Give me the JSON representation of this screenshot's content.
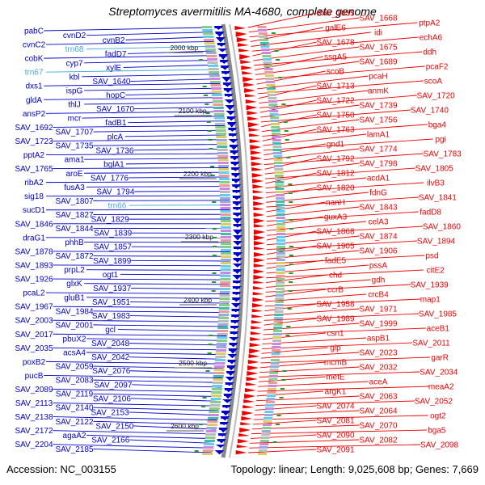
{
  "title": "Streptomyces avermitilis MA-4680, complete genome",
  "footer": {
    "accession": "Accession: NC_003155",
    "topology": "Topology: linear; Length: 9,025,608 bp; Genes: 7,669"
  },
  "colors": {
    "forward_strand": "#0000cc",
    "reverse_strand": "#ee0000",
    "trna": "#44aadd",
    "backbone": "#888888",
    "tick_marker": "#229922"
  },
  "scale_marks": [
    "2000 kbp",
    "2100 kbp",
    "2200 kbp",
    "2300 kbp",
    "2400 kbp",
    "2500 kbp",
    "2600 kbp"
  ],
  "left_labels": [
    "pabC",
    "cvnD2",
    "cvnB2",
    "cvnC2",
    "trn68",
    "fadD7",
    "cobK",
    "cyp7",
    "xylE",
    "trn67",
    "kbl",
    "SAV_1640",
    "dxs1",
    "ispG",
    "hopC",
    "gldA",
    "thlJ",
    "SAV_1670",
    "ansP2",
    "mcr",
    "fadB1",
    "SAV_1692",
    "SAV_1707",
    "plcA",
    "SAV_1723",
    "SAV_1735",
    "SAV_1736",
    "pptA2",
    "ama1",
    "bglA1",
    "SAV_1765",
    "aroE",
    "SAV_1776",
    "ribA2",
    "fusA3",
    "SAV_1794",
    "sig18",
    "SAV_1807",
    "trn66",
    "sucD1",
    "SAV_1827",
    "SAV_1829",
    "SAV_1846",
    "SAV_1844",
    "SAV_1839",
    "draG1",
    "phhB",
    "SAV_1857",
    "SAV_1878",
    "SAV_1872",
    "SAV_1899",
    "SAV_1893",
    "prpL2",
    "ogt1",
    "SAV_1926",
    "glxK",
    "SAV_1937",
    "pcaL2",
    "gluB1",
    "SAV_1951",
    "SAV_1967",
    "SAV_1984",
    "SAV_1983",
    "SAV_2003",
    "SAV_2001",
    "gcl",
    "SAV_2017",
    "pbuX2",
    "SAV_2048",
    "SAV_2035",
    "acsA4",
    "SAV_2042",
    "poxB2",
    "SAV_2059",
    "SAV_2076",
    "pucB",
    "SAV_2083",
    "SAV_2097",
    "SAV_2089",
    "SAV_2119",
    "SAV_2106",
    "SAV_2113",
    "SAV_2140",
    "SAV_2153",
    "SAV_2138",
    "SAV_2122",
    "SAV_2150",
    "SAV_2172",
    "agaA2",
    "SAV_2166",
    "SAV_2204",
    "SAV_2185"
  ],
  "right_labels": [
    "SAV_1635",
    "SAV_1668",
    "ptpA2",
    "galE6",
    "idi",
    "echA6",
    "SAV_1678",
    "SAV_1675",
    "ddh",
    "ssgA5",
    "SAV_1689",
    "pcaF2",
    "scoB",
    "pcaH",
    "scoA",
    "SAV_1713",
    "anmK",
    "SAV_1720",
    "SAV_1722",
    "SAV_1739",
    "SAV_1740",
    "SAV_1750",
    "SAV_1756",
    "bga4",
    "SAV_1763",
    "lamA1",
    "pgi",
    "gnd1",
    "SAV_1774",
    "SAV_1783",
    "SAV_1792",
    "SAV_1798",
    "SAV_1805",
    "SAV_1812",
    "acdA1",
    "ilvB3",
    "SAV_1820",
    "fdnG",
    "SAV_1841",
    "nanH",
    "SAV_1843",
    "fadD8",
    "guxA3",
    "celA3",
    "SAV_1860",
    "SAV_1868",
    "SAV_1874",
    "SAV_1894",
    "SAV_1905",
    "SAV_1906",
    "psd",
    "fadE5",
    "pssA",
    "citE2",
    "chd",
    "gdh",
    "SAV_1939",
    "ccrB",
    "crcB4",
    "map1",
    "SAV_1958",
    "SAV_1971",
    "SAV_1985",
    "SAV_1989",
    "SAV_1999",
    "aceB1",
    "csn1",
    "aspB1",
    "SAV_2011",
    "gip",
    "SAV_2023",
    "garR",
    "mcmB",
    "SAV_2032",
    "SAV_2034",
    "metE",
    "aceA",
    "meaA2",
    "argK1",
    "SAV_2063",
    "SAV_2052",
    "SAV_2074",
    "SAV_2064",
    "ogt2",
    "SAV_2081",
    "SAV_2070",
    "bga5",
    "SAV_2090",
    "SAV_2082",
    "SAV_2098",
    "SAV_2091"
  ]
}
